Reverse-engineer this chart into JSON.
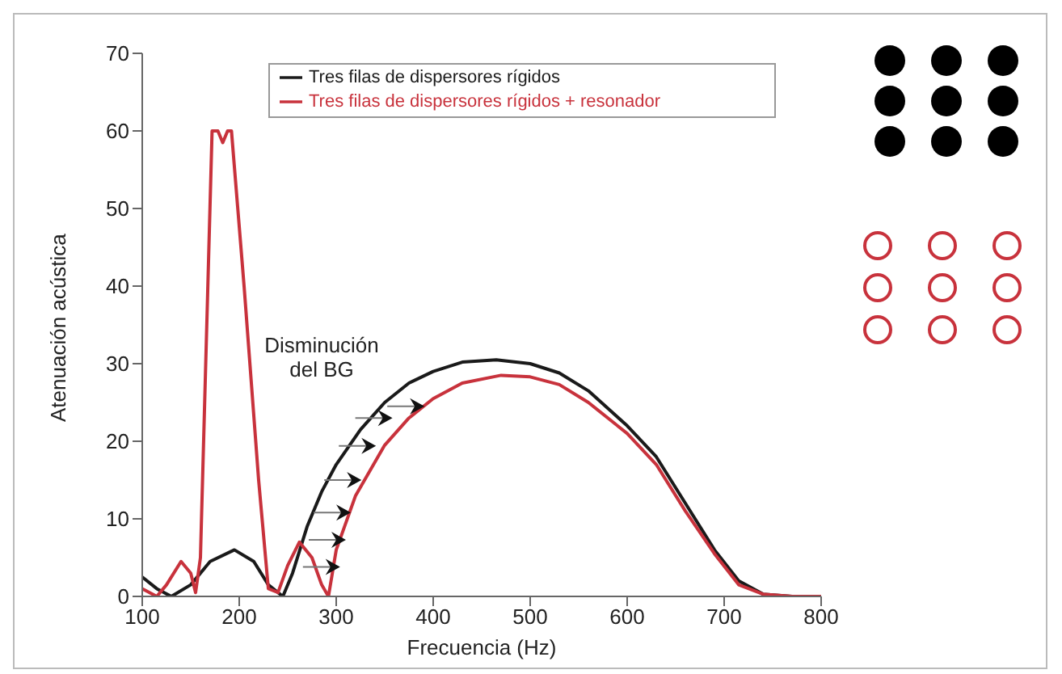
{
  "chart_data": {
    "type": "line",
    "xlabel": "Frecuencia (Hz)",
    "ylabel": "Atenuación acústica",
    "xlim": [
      100,
      800
    ],
    "xticks": [
      100,
      200,
      300,
      400,
      500,
      600,
      700,
      800
    ],
    "ylim": [
      0,
      70
    ],
    "yticks": [
      0,
      10,
      20,
      30,
      40,
      50,
      60,
      70
    ],
    "legend": "top",
    "grid": false,
    "marker": "none",
    "line_style": "solid",
    "annotations": [
      "Disminución del BG"
    ],
    "series": [
      {
        "name": "Tres filas de dispersores rígidos",
        "color": "#1a1a1a",
        "x": [
          100,
          115,
          130,
          150,
          170,
          195,
          215,
          230,
          245,
          255,
          270,
          285,
          300,
          325,
          350,
          375,
          400,
          430,
          465,
          500,
          530,
          560,
          600,
          630,
          660,
          690,
          715,
          740,
          770,
          800
        ],
        "values": [
          2.5,
          1,
          0,
          1.5,
          4.5,
          6,
          4.5,
          1.5,
          0,
          3,
          9,
          13.5,
          17,
          21.5,
          25,
          27.5,
          29,
          30.2,
          30.5,
          30,
          28.8,
          26.5,
          22,
          18,
          12,
          6,
          2,
          0.3,
          0,
          0
        ]
      },
      {
        "name": "Tres filas de dispersores rígidos + resonador",
        "color": "#c8323c",
        "x": [
          100,
          115,
          125,
          140,
          150,
          155,
          160,
          172,
          178,
          183,
          188,
          192,
          205,
          220,
          230,
          240,
          250,
          262,
          275,
          285,
          292,
          300,
          320,
          350,
          375,
          400,
          430,
          470,
          500,
          530,
          560,
          600,
          630,
          660,
          690,
          715,
          740,
          770,
          800
        ],
        "values": [
          1,
          0,
          1.5,
          4.5,
          3,
          0.5,
          5,
          60,
          60,
          58.5,
          60,
          60,
          40,
          15,
          1,
          0.5,
          4,
          7,
          5,
          1.5,
          0,
          6,
          13,
          19.5,
          23,
          25.5,
          27.5,
          28.5,
          28.3,
          27.3,
          25,
          21,
          17,
          11,
          5.5,
          1.5,
          0.3,
          0,
          0
        ]
      }
    ]
  }
}
